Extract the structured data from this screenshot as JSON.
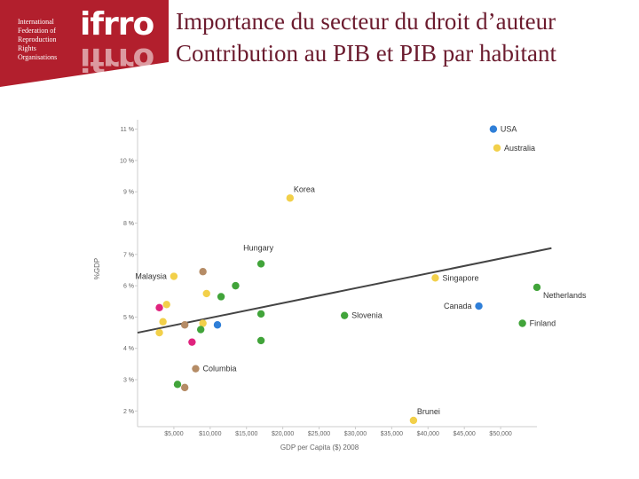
{
  "logo": {
    "org_lines": [
      "International",
      "Federation of",
      "Reproduction",
      "Rights",
      "Organisations"
    ],
    "mark": "ifrro",
    "colors": {
      "banner": "#b21f2d",
      "text": "#ffffff"
    }
  },
  "title": {
    "line1": "Importance du secteur du droit d’auteur",
    "line2": "Contribution au PIB et PIB par habitant",
    "color": "#6b1b2e"
  },
  "chart_data": {
    "type": "scatter",
    "title": "",
    "xlabel": "GDP per Capita ($) 2008",
    "ylabel": "%GDP",
    "xlim": [
      0,
      55000
    ],
    "ylim": [
      1.5,
      11.3
    ],
    "x_ticks": [
      5000,
      10000,
      15000,
      20000,
      25000,
      30000,
      35000,
      40000,
      45000,
      50000
    ],
    "x_tick_labels": [
      "$5,000",
      "$10,000",
      "$15,000",
      "$20,000",
      "$25,000",
      "$30,000",
      "$35,000",
      "$40,000",
      "$45,000",
      "$50,000"
    ],
    "y_ticks": [
      2,
      3,
      4,
      5,
      6,
      7,
      8,
      9,
      10,
      11
    ],
    "y_tick_labels": [
      "2 %",
      "3 %",
      "4 %",
      "5 %",
      "6 %",
      "7 %",
      "8 %",
      "9 %",
      "10 %",
      "11 %"
    ],
    "trendline": {
      "x": [
        0,
        57000
      ],
      "y": [
        4.5,
        7.2
      ],
      "color": "#444444"
    },
    "colors": {
      "blue": "#2f7fd8",
      "yellow": "#f2d04a",
      "green": "#41a43a",
      "brown": "#b58c66",
      "magenta": "#e0237e",
      "axis": "#cccccc",
      "tick_text": "#666666",
      "label_text": "#333333"
    },
    "points": [
      {
        "x": 49000,
        "y": 11.0,
        "color": "blue",
        "label": "USA"
      },
      {
        "x": 49500,
        "y": 10.4,
        "color": "yellow",
        "label": "Australia"
      },
      {
        "x": 21000,
        "y": 8.8,
        "color": "yellow",
        "label": "Korea"
      },
      {
        "x": 17000,
        "y": 6.7,
        "color": "green",
        "label": "Hungary"
      },
      {
        "x": 41000,
        "y": 6.25,
        "color": "yellow",
        "label": "Singapore"
      },
      {
        "x": 55000,
        "y": 5.95,
        "color": "green",
        "label": "Netherlands"
      },
      {
        "x": 47000,
        "y": 5.35,
        "color": "blue",
        "label": "Canada"
      },
      {
        "x": 28500,
        "y": 5.05,
        "color": "green",
        "label": "Slovenia"
      },
      {
        "x": 53000,
        "y": 4.8,
        "color": "green",
        "label": "Finland"
      },
      {
        "x": 5000,
        "y": 6.3,
        "color": "yellow",
        "label": "Malaysia"
      },
      {
        "x": 8000,
        "y": 3.35,
        "color": "brown",
        "label": "Columbia"
      },
      {
        "x": 38000,
        "y": 1.7,
        "color": "yellow",
        "label": "Brunei"
      },
      {
        "x": 9000,
        "y": 6.45,
        "color": "brown",
        "label": ""
      },
      {
        "x": 13500,
        "y": 6.0,
        "color": "green",
        "label": ""
      },
      {
        "x": 9500,
        "y": 5.75,
        "color": "yellow",
        "label": ""
      },
      {
        "x": 11500,
        "y": 5.65,
        "color": "green",
        "label": ""
      },
      {
        "x": 4000,
        "y": 5.4,
        "color": "yellow",
        "label": ""
      },
      {
        "x": 3000,
        "y": 5.3,
        "color": "magenta",
        "label": ""
      },
      {
        "x": 17000,
        "y": 5.1,
        "color": "green",
        "label": ""
      },
      {
        "x": 3500,
        "y": 4.85,
        "color": "yellow",
        "label": ""
      },
      {
        "x": 6500,
        "y": 4.75,
        "color": "brown",
        "label": ""
      },
      {
        "x": 9000,
        "y": 4.8,
        "color": "yellow",
        "label": ""
      },
      {
        "x": 11000,
        "y": 4.75,
        "color": "blue",
        "label": ""
      },
      {
        "x": 8700,
        "y": 4.6,
        "color": "green",
        "label": ""
      },
      {
        "x": 3000,
        "y": 4.5,
        "color": "yellow",
        "label": ""
      },
      {
        "x": 7500,
        "y": 4.2,
        "color": "magenta",
        "label": ""
      },
      {
        "x": 17000,
        "y": 4.25,
        "color": "green",
        "label": ""
      },
      {
        "x": 5500,
        "y": 2.85,
        "color": "green",
        "label": ""
      },
      {
        "x": 6500,
        "y": 2.75,
        "color": "brown",
        "label": ""
      }
    ]
  }
}
